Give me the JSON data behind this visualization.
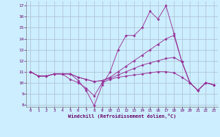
{
  "xlabel": "Windchill (Refroidissement éolien,°C)",
  "bg_color": "#cceeff",
  "grid_color": "#aabbcc",
  "line_color": "#993399",
  "text_color": "#660066",
  "xlim": [
    -0.5,
    23.5
  ],
  "ylim": [
    7.8,
    17.4
  ],
  "yticks": [
    8,
    9,
    10,
    11,
    12,
    13,
    14,
    15,
    16,
    17
  ],
  "xticks": [
    0,
    1,
    2,
    3,
    4,
    5,
    6,
    7,
    8,
    9,
    10,
    11,
    12,
    13,
    14,
    15,
    16,
    17,
    18,
    19,
    20,
    21,
    22,
    23
  ],
  "series": [
    [
      11.0,
      10.6,
      10.6,
      10.8,
      10.8,
      10.8,
      10.2,
      9.3,
      7.9,
      9.8,
      11.0,
      13.0,
      14.3,
      14.3,
      15.0,
      16.5,
      15.8,
      17.0,
      14.5,
      11.9,
      10.0,
      9.3,
      10.0,
      9.8
    ],
    [
      11.0,
      10.6,
      10.6,
      10.8,
      10.8,
      10.8,
      10.5,
      10.3,
      10.1,
      10.2,
      10.5,
      11.0,
      11.5,
      12.0,
      12.5,
      13.0,
      13.5,
      14.0,
      14.3,
      11.9,
      10.0,
      9.3,
      10.0,
      9.8
    ],
    [
      11.0,
      10.6,
      10.6,
      10.8,
      10.8,
      10.8,
      10.5,
      10.3,
      10.1,
      10.2,
      10.4,
      10.7,
      11.0,
      11.3,
      11.6,
      11.8,
      12.0,
      12.2,
      12.3,
      11.9,
      10.0,
      9.3,
      10.0,
      9.8
    ],
    [
      11.0,
      10.6,
      10.6,
      10.8,
      10.8,
      10.3,
      10.0,
      9.5,
      8.8,
      10.0,
      10.3,
      10.5,
      10.6,
      10.7,
      10.8,
      10.9,
      11.0,
      11.0,
      10.9,
      10.5,
      10.0,
      9.3,
      10.0,
      9.8
    ]
  ]
}
